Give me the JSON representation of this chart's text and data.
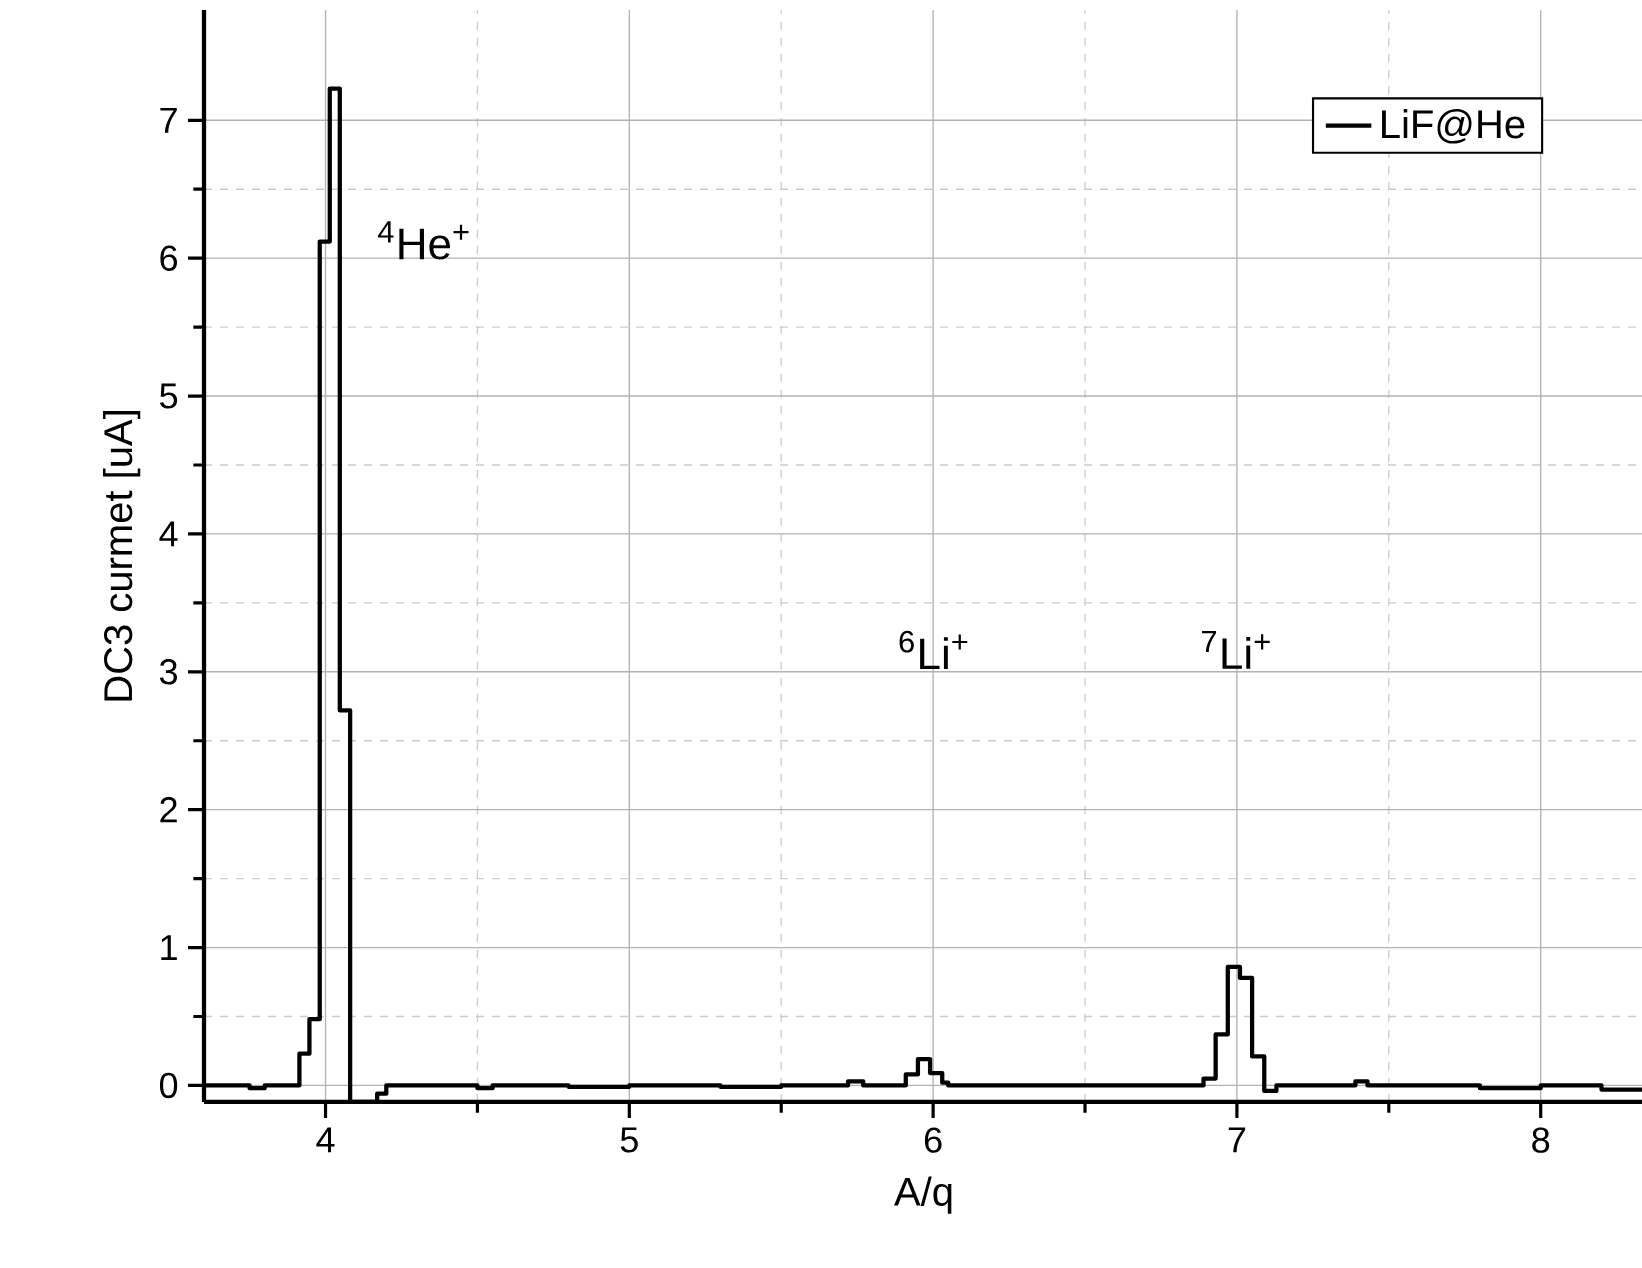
{
  "chart_data": {
    "type": "step",
    "xlabel": "A/q",
    "ylabel": "DC3 curmet [uA]",
    "series": [
      {
        "name": "LiF@He",
        "color": "#000000",
        "x": [
          3.6,
          3.75,
          3.8,
          3.914,
          3.947,
          3.981,
          4.014,
          4.047,
          4.081,
          4.17,
          4.2,
          4.5,
          4.55,
          4.8,
          5.0,
          5.3,
          5.5,
          5.72,
          5.77,
          5.91,
          5.95,
          5.99,
          6.03,
          6.05,
          6.5,
          6.89,
          6.93,
          6.97,
          7.01,
          7.05,
          7.09,
          7.13,
          7.39,
          7.43,
          7.8,
          8.0,
          8.2,
          8.34
        ],
        "values": [
          0.0,
          -0.02,
          0.0,
          0.23,
          0.48,
          6.12,
          7.23,
          2.72,
          -0.12,
          -0.06,
          0.0,
          -0.02,
          0.0,
          -0.01,
          0.0,
          -0.01,
          0.0,
          0.03,
          0.0,
          0.08,
          0.19,
          0.09,
          0.02,
          0.0,
          0.0,
          0.05,
          0.37,
          0.86,
          0.78,
          0.21,
          -0.04,
          0.0,
          0.03,
          0.0,
          -0.02,
          0.0,
          -0.03,
          -0.03
        ]
      }
    ],
    "xlim": [
      3.6,
      8.34
    ],
    "ylim": [
      -0.12,
      7.8
    ],
    "xticks": [
      4,
      5,
      6,
      7,
      8
    ],
    "yticks": [
      0,
      1,
      2,
      3,
      4,
      5,
      6,
      7
    ],
    "grid": true,
    "legend": "top right",
    "annotations": [
      "$^{4}$He$^{+}$",
      "$^{6}$Li$^{+}$",
      "$^{7}$Li$^{+}$"
    ]
  }
}
